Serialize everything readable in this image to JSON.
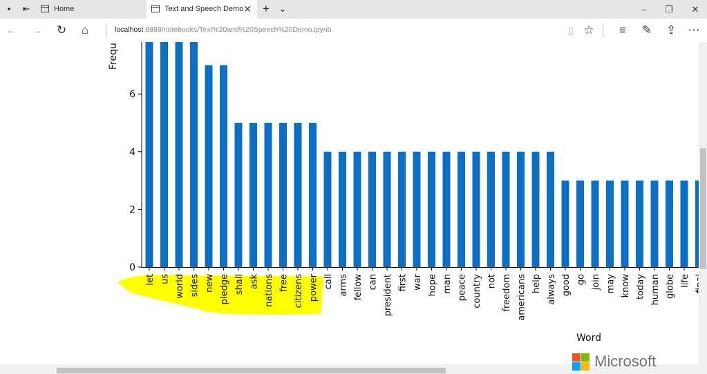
{
  "browser": {
    "tabs": [
      {
        "label": "Home"
      },
      {
        "label": "Text and Speech Demo"
      }
    ],
    "url_host": "localhost",
    "url_rest": ":8888/notebooks/Text%20and%20Speech%20Demo.ipynb"
  },
  "chart_data": {
    "type": "bar",
    "xlabel": "Word",
    "ylabel": "Frequ",
    "y_ticks": [
      0,
      2,
      4,
      6
    ],
    "ylim": [
      0,
      7.8
    ],
    "bar_color": "#0b6fc6",
    "highlight_color": "#ffff00",
    "highlighted_categories": [
      "let",
      "us",
      "world",
      "sides",
      "new",
      "pledge",
      "shall",
      "ask",
      "nations",
      "free",
      "citizens",
      "power"
    ],
    "categories": [
      "let",
      "us",
      "world",
      "sides",
      "new",
      "pledge",
      "shall",
      "ask",
      "nations",
      "free",
      "citizens",
      "power",
      "call",
      "arms",
      "fellow",
      "can",
      "president",
      "first",
      "war",
      "hope",
      "man",
      "peace",
      "country",
      "not",
      "freedom",
      "americans",
      "help",
      "always",
      "good",
      "go",
      "join",
      "may",
      "know",
      "today",
      "human",
      "globe",
      "life",
      "final"
    ],
    "values": [
      8,
      8,
      8,
      8,
      7,
      7,
      5,
      5,
      5,
      5,
      5,
      5,
      4,
      4,
      4,
      4,
      4,
      4,
      4,
      4,
      4,
      4,
      4,
      4,
      4,
      4,
      4,
      4,
      3,
      3,
      3,
      3,
      3,
      3,
      3,
      3,
      3,
      3
    ]
  },
  "watermark": {
    "text": "Microsoft"
  }
}
